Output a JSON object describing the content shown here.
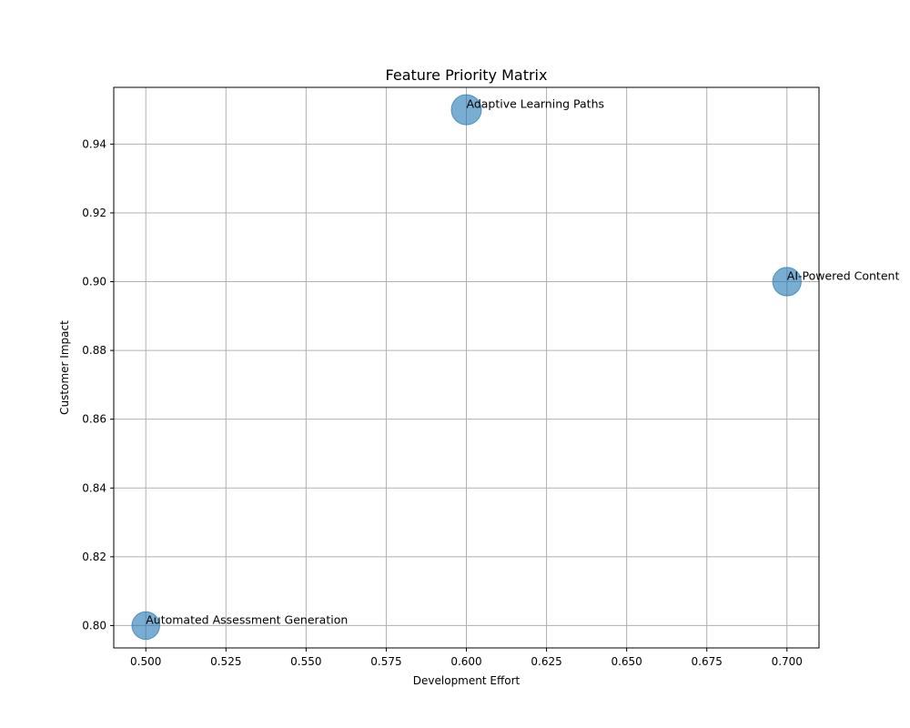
{
  "chart_data": {
    "type": "scatter",
    "title": "Feature Priority Matrix",
    "xlabel": "Development Effort",
    "ylabel": "Customer Impact",
    "xlim": [
      0.49,
      0.71
    ],
    "ylim": [
      0.7935,
      0.9565
    ],
    "xticks": [
      0.5,
      0.525,
      0.55,
      0.575,
      0.6,
      0.625,
      0.65,
      0.675,
      0.7
    ],
    "xtick_labels": [
      "0.500",
      "0.525",
      "0.550",
      "0.575",
      "0.600",
      "0.625",
      "0.650",
      "0.675",
      "0.700"
    ],
    "yticks": [
      0.8,
      0.82,
      0.84,
      0.86,
      0.88,
      0.9,
      0.92,
      0.94
    ],
    "ytick_labels": [
      "0.80",
      "0.82",
      "0.84",
      "0.86",
      "0.88",
      "0.90",
      "0.92",
      "0.94"
    ],
    "grid": true,
    "points": [
      {
        "label": "AI-Powered Content",
        "x": 0.7,
        "y": 0.9,
        "size": 0.9
      },
      {
        "label": "Adaptive Learning Paths",
        "x": 0.6,
        "y": 0.95,
        "size": 1.0
      },
      {
        "label": "Automated Assessment Generation",
        "x": 0.5,
        "y": 0.8,
        "size": 0.85
      }
    ],
    "colors": {
      "marker": "#1f77b4",
      "grid": "#b0b0b0"
    }
  }
}
